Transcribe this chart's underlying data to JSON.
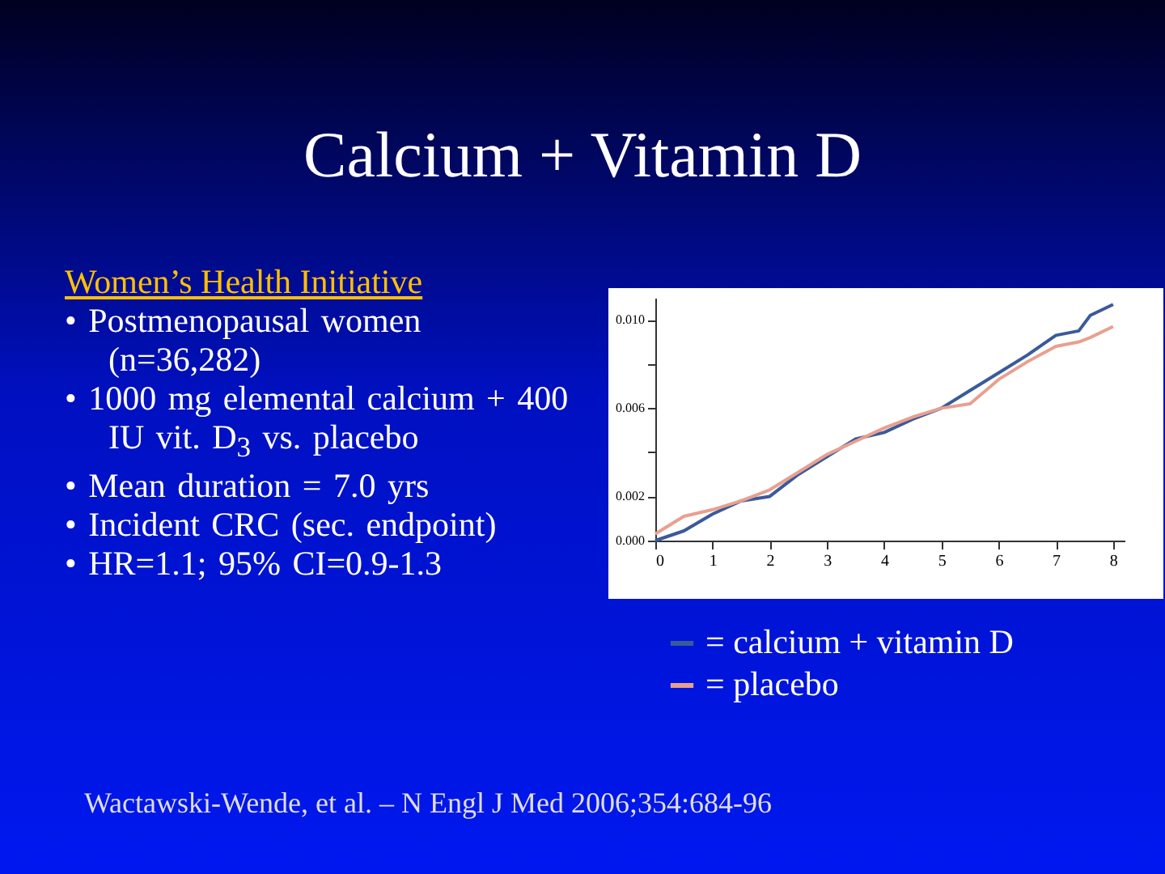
{
  "chart_data": {
    "type": "line",
    "title": "Calcium + Vitamin D",
    "subtitle": "Women’s Health Initiative",
    "annotations": [
      "• Postmenopausal women (n=36,282)",
      "• 1000 mg elemental calcium + 400 IU vit. D$_{3}$ vs. placebo",
      "• Mean duration = 7.0 yrs",
      "• Incident CRC (sec. endpoint)",
      "• HR=1.1; 95% CI=0.9-1.3",
      "Wactawski-Wende, et al. – N Engl J Med 2006;354:684-96"
    ],
    "x": [
      0,
      0.5,
      1,
      1.5,
      2,
      2.5,
      3,
      3.5,
      4,
      4.5,
      5,
      5.5,
      6,
      6.5,
      7,
      7.4,
      7.6,
      8
    ],
    "series": [
      {
        "name": "= calcium + vitamin D",
        "color": "#3a5a9a",
        "values": [
          0,
          0.00044,
          0.0012,
          0.0018,
          0.002,
          0.003,
          0.0038,
          0.0046,
          0.0049,
          0.0055,
          0.006,
          0.0068,
          0.0076,
          0.0084,
          0.0093,
          0.0095,
          0.0102,
          0.0107
        ]
      },
      {
        "name": "= placebo",
        "color": "#e8a090",
        "values": [
          0.0003,
          0.0011,
          0.0014,
          0.0018,
          0.0023,
          0.0031,
          0.0039,
          0.0045,
          0.0051,
          0.0056,
          0.006,
          0.0062,
          0.0073,
          0.0081,
          0.0088,
          0.009,
          0.0092,
          0.0097
        ]
      }
    ],
    "xlim": [
      0,
      8.2
    ],
    "xticks": [
      0,
      1,
      2,
      3,
      4,
      5,
      6,
      7,
      8
    ],
    "ylim": [
      0,
      0.011
    ],
    "yticks": [
      {
        "value": 0,
        "label": "0.000"
      },
      0.002,
      {
        "value": 0.004,
        "label": null
      },
      0.006,
      {
        "value": 0.008,
        "label": null
      },
      {
        "value": 0.01,
        "label": "0.010"
      }
    ],
    "grid": false,
    "legend": "bottom",
    "marker": "none",
    "line_style": "solid"
  }
}
